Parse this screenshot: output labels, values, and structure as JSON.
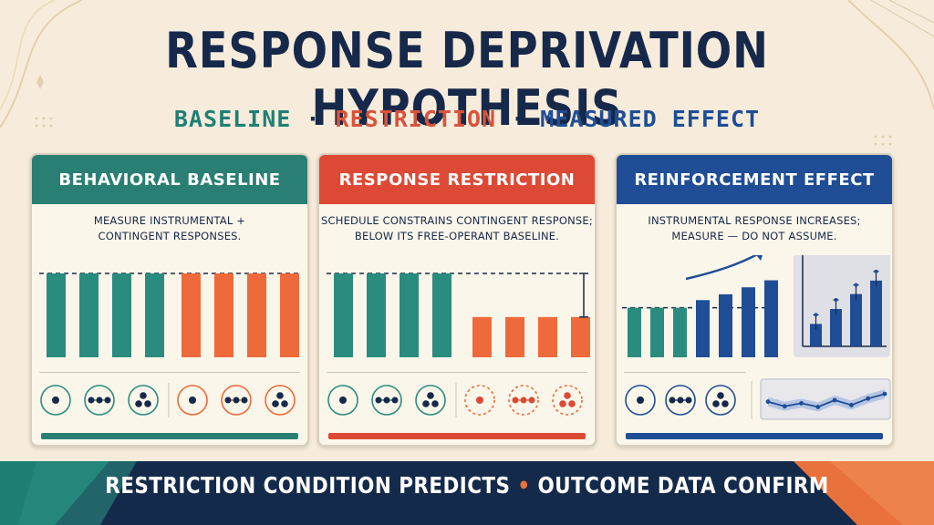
{
  "title": "RESPONSE DEPRIVATION HYPOTHESIS",
  "subtitle": {
    "part1": "BASELINE",
    "part2": "RESTRICTION",
    "part3": "MEASURED EFFECT",
    "separator": "·"
  },
  "colors": {
    "teal": "#2a8c7e",
    "orange": "#ee6a3a",
    "blue": "#1f4d96",
    "red": "#dc4a36",
    "navy": "#142a4a"
  },
  "panels": [
    {
      "id": "baseline",
      "header": "BEHAVIORAL BASELINE",
      "desc_lines": [
        "MEASURE INSTRUMENTAL +",
        "CONTINGENT RESPONSES."
      ],
      "bar_groups": [
        {
          "color": "teal",
          "levels": [
            1,
            1,
            1,
            1
          ]
        },
        {
          "color": "orange",
          "levels": [
            1,
            1,
            1,
            1
          ]
        }
      ],
      "icons": [
        {
          "color": "teal",
          "dots": 1
        },
        {
          "color": "teal",
          "dots": 3,
          "style": "line"
        },
        {
          "color": "teal",
          "dots": 3,
          "style": "triangle"
        },
        {
          "color": "orange",
          "dots": 1
        },
        {
          "color": "orange",
          "dots": 3,
          "style": "line"
        },
        {
          "color": "orange",
          "dots": 3,
          "style": "triangle"
        }
      ]
    },
    {
      "id": "restriction",
      "header": "RESPONSE RESTRICTION",
      "desc_lines": [
        "SCHEDULE CONSTRAINS CONTINGENT RESPONSE;",
        "BELOW ITS FREE-OPERANT BASELINE."
      ],
      "bar_groups": [
        {
          "color": "teal",
          "levels": [
            1,
            1,
            1,
            1
          ]
        },
        {
          "color": "orange",
          "levels": [
            0.48,
            0.48,
            0.48,
            0.48
          ]
        }
      ],
      "icons": [
        {
          "color": "teal",
          "dots": 1
        },
        {
          "color": "teal",
          "dots": 3,
          "style": "line"
        },
        {
          "color": "teal",
          "dots": 3,
          "style": "triangle"
        },
        {
          "color": "orange",
          "dots": 1,
          "dashed": true
        },
        {
          "color": "orange",
          "dots": 3,
          "style": "line",
          "dashed": true
        },
        {
          "color": "orange",
          "dots": 3,
          "style": "triangle",
          "dashed": true
        }
      ]
    },
    {
      "id": "effect",
      "header": "REINFORCEMENT EFFECT",
      "desc_lines": [
        "INSTRUMENTAL RESPONSE INCREASES;",
        "MEASURE — DO NOT ASSUME."
      ],
      "bar_groups": [
        {
          "color": "teal",
          "levels": [
            0.85,
            0.85,
            0.85
          ]
        },
        {
          "color": "blue",
          "levels": [
            0.98,
            1.08,
            1.2,
            1.32
          ]
        }
      ],
      "inset_bars": [
        0.3,
        0.5,
        0.7,
        0.88
      ],
      "icons": [
        {
          "color": "blue",
          "dots": 1
        },
        {
          "color": "blue",
          "dots": 3,
          "style": "line"
        },
        {
          "color": "blue",
          "dots": 3,
          "style": "triangle"
        }
      ],
      "trend_points": [
        0.55,
        0.7,
        0.6,
        0.72,
        0.5,
        0.66,
        0.45,
        0.3
      ]
    }
  ],
  "footer": {
    "left": "RESTRICTION CONDITION PREDICTS",
    "separator": "•",
    "right": "OUTCOME DATA CONFIRM"
  }
}
